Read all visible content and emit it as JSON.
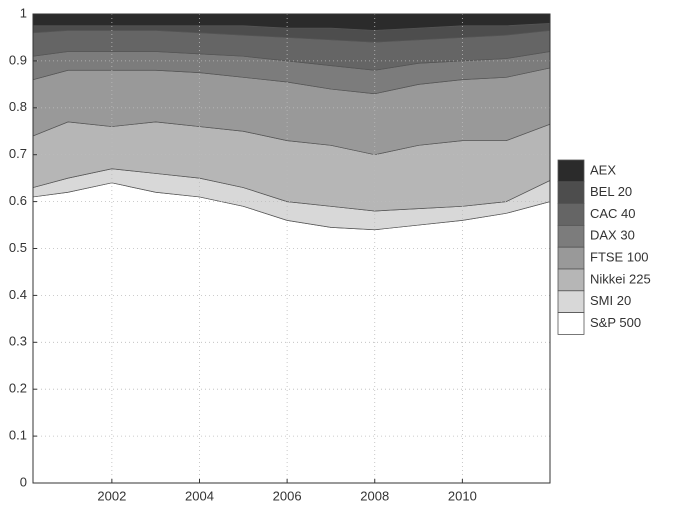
{
  "chart_data": {
    "type": "stacked_area",
    "x": [
      2000.2,
      2001,
      2002,
      2003,
      2004,
      2005,
      2006,
      2007,
      2008,
      2009,
      2010,
      2011,
      2012
    ],
    "xlim": [
      2000.2,
      2012
    ],
    "xticks": [
      2002,
      2004,
      2006,
      2008,
      2010
    ],
    "ylim": [
      0,
      1
    ],
    "yticks": [
      0,
      0.1,
      0.2,
      0.3,
      0.4,
      0.5,
      0.6,
      0.7,
      0.8,
      0.9,
      1
    ],
    "grid": true,
    "legend": "right",
    "series": [
      {
        "name": "S&P 500",
        "color": "#ffffff",
        "values": [
          0.61,
          0.62,
          0.64,
          0.62,
          0.61,
          0.59,
          0.56,
          0.545,
          0.54,
          0.55,
          0.56,
          0.575,
          0.6
        ]
      },
      {
        "name": "SMI 20",
        "color": "#d8d8d8",
        "values": [
          0.02,
          0.03,
          0.03,
          0.04,
          0.04,
          0.04,
          0.04,
          0.045,
          0.04,
          0.035,
          0.03,
          0.025,
          0.045
        ]
      },
      {
        "name": "Nikkei 225",
        "color": "#b6b6b6",
        "values": [
          0.11,
          0.12,
          0.09,
          0.11,
          0.11,
          0.12,
          0.13,
          0.13,
          0.12,
          0.135,
          0.14,
          0.13,
          0.12
        ]
      },
      {
        "name": "FTSE 100",
        "color": "#999999",
        "values": [
          0.12,
          0.11,
          0.12,
          0.11,
          0.115,
          0.115,
          0.125,
          0.12,
          0.13,
          0.13,
          0.13,
          0.135,
          0.12
        ]
      },
      {
        "name": "DAX 30",
        "color": "#7c7c7c",
        "values": [
          0.05,
          0.04,
          0.04,
          0.04,
          0.04,
          0.045,
          0.045,
          0.05,
          0.05,
          0.045,
          0.04,
          0.04,
          0.035
        ]
      },
      {
        "name": "CAC 40",
        "color": "#656565",
        "values": [
          0.05,
          0.045,
          0.045,
          0.045,
          0.045,
          0.045,
          0.05,
          0.055,
          0.06,
          0.05,
          0.05,
          0.05,
          0.045
        ]
      },
      {
        "name": "BEL 20",
        "color": "#4d4d4d",
        "values": [
          0.015,
          0.01,
          0.01,
          0.01,
          0.015,
          0.02,
          0.02,
          0.025,
          0.025,
          0.025,
          0.025,
          0.02,
          0.015
        ]
      },
      {
        "name": "AEX",
        "color": "#2b2b2b",
        "values": [
          0.025,
          0.025,
          0.025,
          0.025,
          0.025,
          0.025,
          0.03,
          0.03,
          0.035,
          0.03,
          0.025,
          0.025,
          0.02
        ]
      }
    ]
  }
}
